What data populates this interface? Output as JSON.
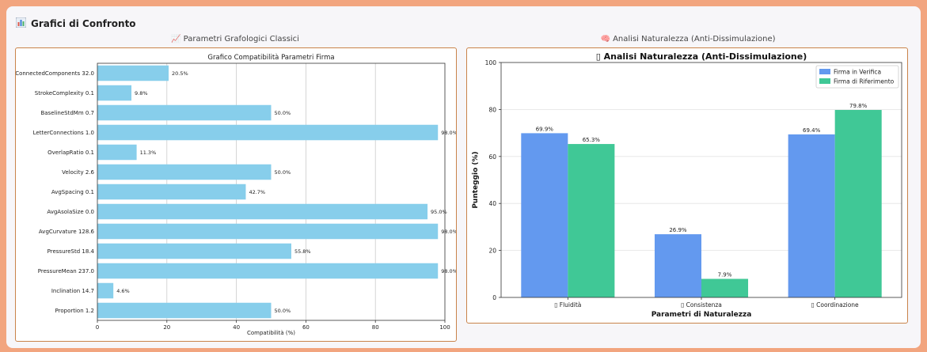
{
  "panel": {
    "title": "Grafici di Confronto",
    "icon": "bar-chart-icon"
  },
  "left": {
    "subtitle": "📈 Parametri Grafologici Classici"
  },
  "right": {
    "subtitle": "🧠 Analisi Naturalezza (Anti-Dissimulazione)"
  },
  "chart_data": [
    {
      "type": "bar",
      "orientation": "horizontal",
      "title": "Grafico Compatibilità Parametri Firma",
      "xlabel": "Compatibilità (%)",
      "ylabel": "",
      "xlim": [
        0,
        100
      ],
      "xticks": [
        0,
        20,
        40,
        60,
        80,
        100
      ],
      "grid": "vertical",
      "color": "#87ceeb",
      "categories": [
        "ConnectedComponents 32.0",
        "StrokeComplexity 0.1",
        "BaselineStdMm 0.7",
        "LetterConnections 1.0",
        "OverlapRatio 0.1",
        "Velocity 2.6",
        "AvgSpacing 0.1",
        "AvgAsolaSize 0.0",
        "AvgCurvature 128.6",
        "PressureStd 18.4",
        "PressureMean 237.0",
        "Inclination 14.7",
        "Proportion 1.2"
      ],
      "values": [
        20.5,
        9.8,
        50.0,
        98.0,
        11.3,
        50.0,
        42.7,
        95.0,
        98.0,
        55.8,
        98.0,
        4.6,
        50.0
      ],
      "labels": [
        "20.5%",
        "9.8%",
        "50.0%",
        "98.0%",
        "11.3%",
        "50.0%",
        "42.7%",
        "95.0%",
        "98.0%",
        "55.8%",
        "98.0%",
        "4.6%",
        "50.0%"
      ]
    },
    {
      "type": "bar",
      "title": "▯ Analisi Naturalezza (Anti-Dissimulazione)",
      "xlabel": "Parametri di Naturalezza",
      "ylabel": "Punteggio (%)",
      "ylim": [
        0,
        100
      ],
      "yticks": [
        0,
        20,
        40,
        60,
        80,
        100
      ],
      "grid": "horizontal",
      "legend": "top-right",
      "categories": [
        "▯ Fluidità",
        "▯ Consistenza",
        "▯ Coordinazione"
      ],
      "series": [
        {
          "name": "Firma in Verifica",
          "values": [
            69.9,
            26.9,
            69.4
          ],
          "labels": [
            "69.9%",
            "26.9%",
            "69.4%"
          ],
          "color": "#6399ef"
        },
        {
          "name": "Firma di Riferimento",
          "values": [
            65.3,
            7.9,
            79.8
          ],
          "labels": [
            "65.3%",
            "7.9%",
            "79.8%"
          ],
          "color": "#40c896"
        }
      ]
    }
  ]
}
